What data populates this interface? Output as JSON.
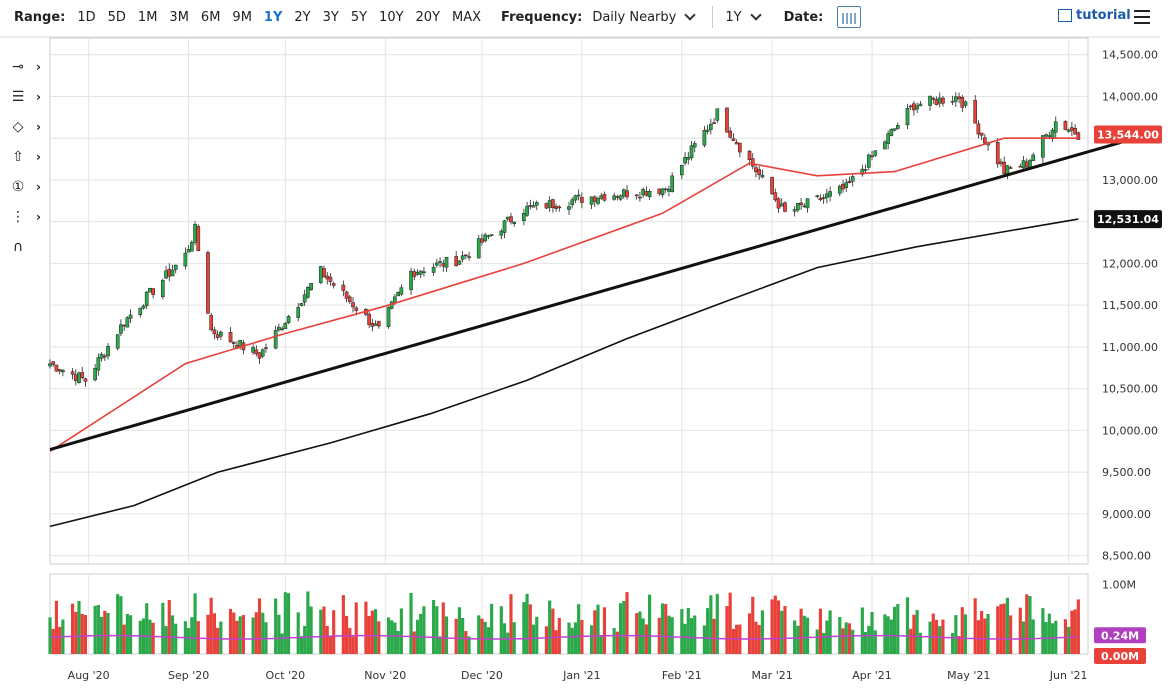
{
  "toolbar": {
    "range_label": "Range:",
    "ranges": [
      "1D",
      "5D",
      "1M",
      "3M",
      "6M",
      "9M",
      "1Y",
      "2Y",
      "3Y",
      "5Y",
      "10Y",
      "20Y",
      "MAX"
    ],
    "active_range": "1Y",
    "frequency_label": "Frequency:",
    "frequency_value": "Daily Nearby",
    "period_value": "1Y",
    "date_label": "Date:",
    "tutorial_label": "tutorial"
  },
  "tools": [
    "crosshair-icon",
    "trend-lines-icon",
    "shapes-icon",
    "arrow-up-icon",
    "annotation-number-icon",
    "fibonacci-icon",
    "magnet-icon"
  ],
  "chart_data": {
    "type": "candlestick",
    "x_ticks": [
      "Aug '20",
      "Sep '20",
      "Oct '20",
      "Nov '20",
      "Dec '20",
      "Jan '21",
      "Feb '21",
      "Mar '21",
      "Apr '21",
      "May '21",
      "Jun '21"
    ],
    "y_ticks": [
      "14,500.00",
      "14,000.00",
      "13,500.00",
      "13,000.00",
      "12,500.00",
      "12,000.00",
      "11,500.00",
      "11,000.00",
      "10,500.00",
      "10,000.00",
      "9,500.00",
      "9,000.00",
      "8,500.00"
    ],
    "ylim": [
      8400,
      14700
    ],
    "price_labels": [
      {
        "value": 13544,
        "text": "13,544.00",
        "color": "#e8413a"
      },
      {
        "value": 12531.04,
        "text": "12,531.04",
        "color": "#111111"
      }
    ],
    "anchors": [
      [
        "2020-07-20",
        10800
      ],
      [
        "2020-07-31",
        10600
      ],
      [
        "2020-08-12",
        11300
      ],
      [
        "2020-08-31",
        12100
      ],
      [
        "2020-09-03",
        12400
      ],
      [
        "2020-09-08",
        11200
      ],
      [
        "2020-09-23",
        10900
      ],
      [
        "2020-10-12",
        11900
      ],
      [
        "2020-10-30",
        11200
      ],
      [
        "2020-11-09",
        11900
      ],
      [
        "2020-11-24",
        12050
      ],
      [
        "2020-12-14",
        12650
      ],
      [
        "2021-01-04",
        12800
      ],
      [
        "2021-01-27",
        12900
      ],
      [
        "2021-02-12",
        13800
      ],
      [
        "2021-02-26",
        13000
      ],
      [
        "2021-03-05",
        12600
      ],
      [
        "2021-03-24",
        12900
      ],
      [
        "2021-04-14",
        13900
      ],
      [
        "2021-04-28",
        14000
      ],
      [
        "2021-05-12",
        13100
      ],
      [
        "2021-05-19",
        13200
      ],
      [
        "2021-05-28",
        13700
      ],
      [
        "2021-06-04",
        13550
      ]
    ],
    "overlays": [
      {
        "name": "",
        "color": "#e8413a",
        "points": [
          [
            "2020-07-20",
            9750
          ],
          [
            "2020-08-31",
            10800
          ],
          [
            "2020-09-30",
            11150
          ],
          [
            "2020-11-02",
            11500
          ],
          [
            "2020-12-14",
            12000
          ],
          [
            "2021-01-26",
            12600
          ],
          [
            "2021-02-22",
            13200
          ],
          [
            "2021-03-15",
            13050
          ],
          [
            "2021-04-08",
            13100
          ],
          [
            "2021-05-12",
            13500
          ],
          [
            "2021-06-04",
            13500
          ]
        ]
      },
      {
        "name": "",
        "color": "#111111",
        "points": [
          [
            "2020-07-20",
            8850
          ],
          [
            "2020-08-15",
            9100
          ],
          [
            "2020-09-10",
            9500
          ],
          [
            "2020-10-15",
            9850
          ],
          [
            "2020-11-15",
            10200
          ],
          [
            "2020-12-15",
            10600
          ],
          [
            "2021-01-15",
            11100
          ],
          [
            "2021-02-15",
            11550
          ],
          [
            "2021-03-15",
            11950
          ],
          [
            "2021-04-15",
            12200
          ],
          [
            "2021-05-15",
            12400
          ],
          [
            "2021-06-04",
            12531
          ]
        ]
      }
    ],
    "trendline": [
      [
        "2020-07-20",
        9770
      ],
      [
        "2021-06-07",
        13300
      ]
    ],
    "volume": {
      "y_ticks": [
        "1.00M"
      ],
      "labels": [
        {
          "text": "0.24M",
          "color": "#b040c0"
        },
        {
          "text": "0.00M",
          "color": "#e8413a"
        }
      ],
      "max": 1150000
    },
    "colors": {
      "up": "#2aa84a",
      "down": "#e8413a",
      "grid": "#e4e4e4"
    }
  }
}
